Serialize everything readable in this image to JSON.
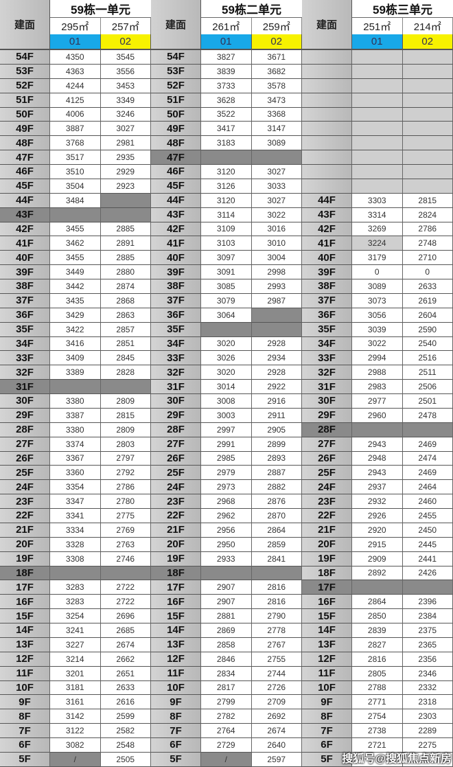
{
  "floor_header": "建面",
  "watermark": "搜狐号@搜狐焦点新房",
  "colors": {
    "unit01": "#18a8e8",
    "unit02": "#f7f200",
    "blocked": "#8a8a8a",
    "floor_column": "#c4c4c4"
  },
  "shade_legend": {
    "-": "normal",
    "d": "blocked-dark",
    "l": "light-gray"
  },
  "buildings": [
    {
      "title": "59栋一单元",
      "units": [
        {
          "area": "295㎡",
          "code": "01"
        },
        {
          "area": "257㎡",
          "code": "02"
        }
      ],
      "rows": [
        [
          "54F",
          "4350",
          "3545",
          "---"
        ],
        [
          "53F",
          "4363",
          "3556",
          "---"
        ],
        [
          "52F",
          "4244",
          "3453",
          "---"
        ],
        [
          "51F",
          "4125",
          "3349",
          "---"
        ],
        [
          "50F",
          "4006",
          "3246",
          "---"
        ],
        [
          "49F",
          "3887",
          "3027",
          "---"
        ],
        [
          "48F",
          "3768",
          "2981",
          "---"
        ],
        [
          "47F",
          "3517",
          "2935",
          "---"
        ],
        [
          "46F",
          "3510",
          "2929",
          "---"
        ],
        [
          "45F",
          "3504",
          "2923",
          "---"
        ],
        [
          "44F",
          "3484",
          "",
          "--d"
        ],
        [
          "43F",
          "",
          "",
          "ddd"
        ],
        [
          "42F",
          "3455",
          "2885",
          "---"
        ],
        [
          "41F",
          "3462",
          "2891",
          "---"
        ],
        [
          "40F",
          "3455",
          "2885",
          "---"
        ],
        [
          "39F",
          "3449",
          "2880",
          "---"
        ],
        [
          "38F",
          "3442",
          "2874",
          "---"
        ],
        [
          "37F",
          "3435",
          "2868",
          "---"
        ],
        [
          "36F",
          "3429",
          "2863",
          "---"
        ],
        [
          "35F",
          "3422",
          "2857",
          "---"
        ],
        [
          "34F",
          "3416",
          "2851",
          "---"
        ],
        [
          "33F",
          "3409",
          "2845",
          "---"
        ],
        [
          "32F",
          "3389",
          "2828",
          "---"
        ],
        [
          "31F",
          "",
          "",
          "ddd"
        ],
        [
          "30F",
          "3380",
          "2809",
          "---"
        ],
        [
          "29F",
          "3387",
          "2815",
          "---"
        ],
        [
          "28F",
          "3380",
          "2809",
          "---"
        ],
        [
          "27F",
          "3374",
          "2803",
          "---"
        ],
        [
          "26F",
          "3367",
          "2797",
          "---"
        ],
        [
          "25F",
          "3360",
          "2792",
          "---"
        ],
        [
          "24F",
          "3354",
          "2786",
          "---"
        ],
        [
          "23F",
          "3347",
          "2780",
          "---"
        ],
        [
          "22F",
          "3341",
          "2775",
          "---"
        ],
        [
          "21F",
          "3334",
          "2769",
          "---"
        ],
        [
          "20F",
          "3328",
          "2763",
          "---"
        ],
        [
          "19F",
          "3308",
          "2746",
          "---"
        ],
        [
          "18F",
          "",
          "",
          "ddd"
        ],
        [
          "17F",
          "3283",
          "2722",
          "---"
        ],
        [
          "16F",
          "3283",
          "2722",
          "---"
        ],
        [
          "15F",
          "3254",
          "2696",
          "---"
        ],
        [
          "14F",
          "3241",
          "2685",
          "---"
        ],
        [
          "13F",
          "3227",
          "2674",
          "---"
        ],
        [
          "12F",
          "3214",
          "2662",
          "---"
        ],
        [
          "11F",
          "3201",
          "2651",
          "---"
        ],
        [
          "10F",
          "3181",
          "2633",
          "---"
        ],
        [
          "9F",
          "3161",
          "2616",
          "---"
        ],
        [
          "8F",
          "3142",
          "2599",
          "---"
        ],
        [
          "7F",
          "3122",
          "2582",
          "---"
        ],
        [
          "6F",
          "3082",
          "2548",
          "---"
        ],
        [
          "5F",
          "/",
          "2505",
          "-d-"
        ]
      ]
    },
    {
      "title": "59栋二单元",
      "units": [
        {
          "area": "261㎡",
          "code": "01"
        },
        {
          "area": "259㎡",
          "code": "02"
        }
      ],
      "rows": [
        [
          "54F",
          "3827",
          "3671",
          "---"
        ],
        [
          "53F",
          "3839",
          "3682",
          "---"
        ],
        [
          "52F",
          "3733",
          "3578",
          "---"
        ],
        [
          "51F",
          "3628",
          "3473",
          "---"
        ],
        [
          "50F",
          "3522",
          "3368",
          "---"
        ],
        [
          "49F",
          "3417",
          "3147",
          "---"
        ],
        [
          "48F",
          "3183",
          "3089",
          "---"
        ],
        [
          "47F",
          "",
          "",
          "ddd"
        ],
        [
          "46F",
          "3120",
          "3027",
          "---"
        ],
        [
          "45F",
          "3126",
          "3033",
          "---"
        ],
        [
          "44F",
          "3120",
          "3027",
          "---"
        ],
        [
          "43F",
          "3114",
          "3022",
          "---"
        ],
        [
          "42F",
          "3109",
          "3016",
          "---"
        ],
        [
          "41F",
          "3103",
          "3010",
          "---"
        ],
        [
          "40F",
          "3097",
          "3004",
          "---"
        ],
        [
          "39F",
          "3091",
          "2998",
          "---"
        ],
        [
          "38F",
          "3085",
          "2993",
          "---"
        ],
        [
          "37F",
          "3079",
          "2987",
          "---"
        ],
        [
          "36F",
          "3064",
          "",
          "--d"
        ],
        [
          "35F",
          "",
          "",
          "-dd"
        ],
        [
          "34F",
          "3020",
          "2928",
          "---"
        ],
        [
          "33F",
          "3026",
          "2934",
          "---"
        ],
        [
          "32F",
          "3020",
          "2928",
          "---"
        ],
        [
          "31F",
          "3014",
          "2922",
          "---"
        ],
        [
          "30F",
          "3008",
          "2916",
          "---"
        ],
        [
          "29F",
          "3003",
          "2911",
          "---"
        ],
        [
          "28F",
          "2997",
          "2905",
          "---"
        ],
        [
          "27F",
          "2991",
          "2899",
          "---"
        ],
        [
          "26F",
          "2985",
          "2893",
          "---"
        ],
        [
          "25F",
          "2979",
          "2887",
          "---"
        ],
        [
          "24F",
          "2973",
          "2882",
          "---"
        ],
        [
          "23F",
          "2968",
          "2876",
          "---"
        ],
        [
          "22F",
          "2962",
          "2870",
          "---"
        ],
        [
          "21F",
          "2956",
          "2864",
          "---"
        ],
        [
          "20F",
          "2950",
          "2859",
          "---"
        ],
        [
          "19F",
          "2933",
          "2841",
          "---"
        ],
        [
          "18F",
          "",
          "",
          "ddd"
        ],
        [
          "17F",
          "2907",
          "2816",
          "---"
        ],
        [
          "16F",
          "2907",
          "2816",
          "---"
        ],
        [
          "15F",
          "2881",
          "2790",
          "---"
        ],
        [
          "14F",
          "2869",
          "2778",
          "---"
        ],
        [
          "13F",
          "2858",
          "2767",
          "---"
        ],
        [
          "12F",
          "2846",
          "2755",
          "---"
        ],
        [
          "11F",
          "2834",
          "2744",
          "---"
        ],
        [
          "10F",
          "2817",
          "2726",
          "---"
        ],
        [
          "9F",
          "2799",
          "2709",
          "---"
        ],
        [
          "8F",
          "2782",
          "2692",
          "---"
        ],
        [
          "7F",
          "2764",
          "2674",
          "---"
        ],
        [
          "6F",
          "2729",
          "2640",
          "---"
        ],
        [
          "5F",
          "/",
          "2597",
          "-d-"
        ]
      ]
    },
    {
      "title": "59栋三单元",
      "units": [
        {
          "area": "251㎡",
          "code": "01"
        },
        {
          "area": "214㎡",
          "code": "02"
        }
      ],
      "rows": [
        [
          "",
          "",
          "",
          "-ll"
        ],
        [
          "",
          "",
          "",
          "-ll"
        ],
        [
          "",
          "",
          "",
          "-ll"
        ],
        [
          "",
          "",
          "",
          "-ll"
        ],
        [
          "",
          "",
          "",
          "-ll"
        ],
        [
          "",
          "",
          "",
          "-ll"
        ],
        [
          "",
          "",
          "",
          "-ll"
        ],
        [
          "",
          "",
          "",
          "-ll"
        ],
        [
          "",
          "",
          "",
          "-ll"
        ],
        [
          "",
          "",
          "",
          "-ll"
        ],
        [
          "44F",
          "3303",
          "2815",
          "---"
        ],
        [
          "43F",
          "3314",
          "2824",
          "---"
        ],
        [
          "42F",
          "3269",
          "2786",
          "---"
        ],
        [
          "41F",
          "3224",
          "2748",
          "-l-"
        ],
        [
          "40F",
          "3179",
          "2710",
          "---"
        ],
        [
          "39F",
          "0",
          "0",
          "---"
        ],
        [
          "38F",
          "3089",
          "2633",
          "---"
        ],
        [
          "37F",
          "3073",
          "2619",
          "---"
        ],
        [
          "36F",
          "3056",
          "2604",
          "---"
        ],
        [
          "35F",
          "3039",
          "2590",
          "---"
        ],
        [
          "34F",
          "3022",
          "2540",
          "---"
        ],
        [
          "33F",
          "2994",
          "2516",
          "---"
        ],
        [
          "32F",
          "2988",
          "2511",
          "---"
        ],
        [
          "31F",
          "2983",
          "2506",
          "---"
        ],
        [
          "30F",
          "2977",
          "2501",
          "---"
        ],
        [
          "29F",
          "2960",
          "2478",
          "---"
        ],
        [
          "28F",
          "",
          "",
          "ddd"
        ],
        [
          "27F",
          "2943",
          "2469",
          "---"
        ],
        [
          "26F",
          "2948",
          "2474",
          "---"
        ],
        [
          "25F",
          "2943",
          "2469",
          "---"
        ],
        [
          "24F",
          "2937",
          "2464",
          "---"
        ],
        [
          "23F",
          "2932",
          "2460",
          "---"
        ],
        [
          "22F",
          "2926",
          "2455",
          "---"
        ],
        [
          "21F",
          "2920",
          "2450",
          "---"
        ],
        [
          "20F",
          "2915",
          "2445",
          "---"
        ],
        [
          "19F",
          "2909",
          "2441",
          "---"
        ],
        [
          "18F",
          "2892",
          "2426",
          "---"
        ],
        [
          "17F",
          "",
          "",
          "ddd"
        ],
        [
          "16F",
          "2864",
          "2396",
          "---"
        ],
        [
          "15F",
          "2850",
          "2384",
          "---"
        ],
        [
          "14F",
          "2839",
          "2375",
          "---"
        ],
        [
          "13F",
          "2827",
          "2365",
          "---"
        ],
        [
          "12F",
          "2816",
          "2356",
          "---"
        ],
        [
          "11F",
          "2805",
          "2346",
          "---"
        ],
        [
          "10F",
          "2788",
          "2332",
          "---"
        ],
        [
          "9F",
          "2771",
          "2318",
          "---"
        ],
        [
          "8F",
          "2754",
          "2303",
          "---"
        ],
        [
          "7F",
          "2738",
          "2289",
          "---"
        ],
        [
          "6F",
          "2721",
          "2275",
          "---"
        ],
        [
          "5F",
          "",
          "",
          "---"
        ]
      ]
    }
  ]
}
